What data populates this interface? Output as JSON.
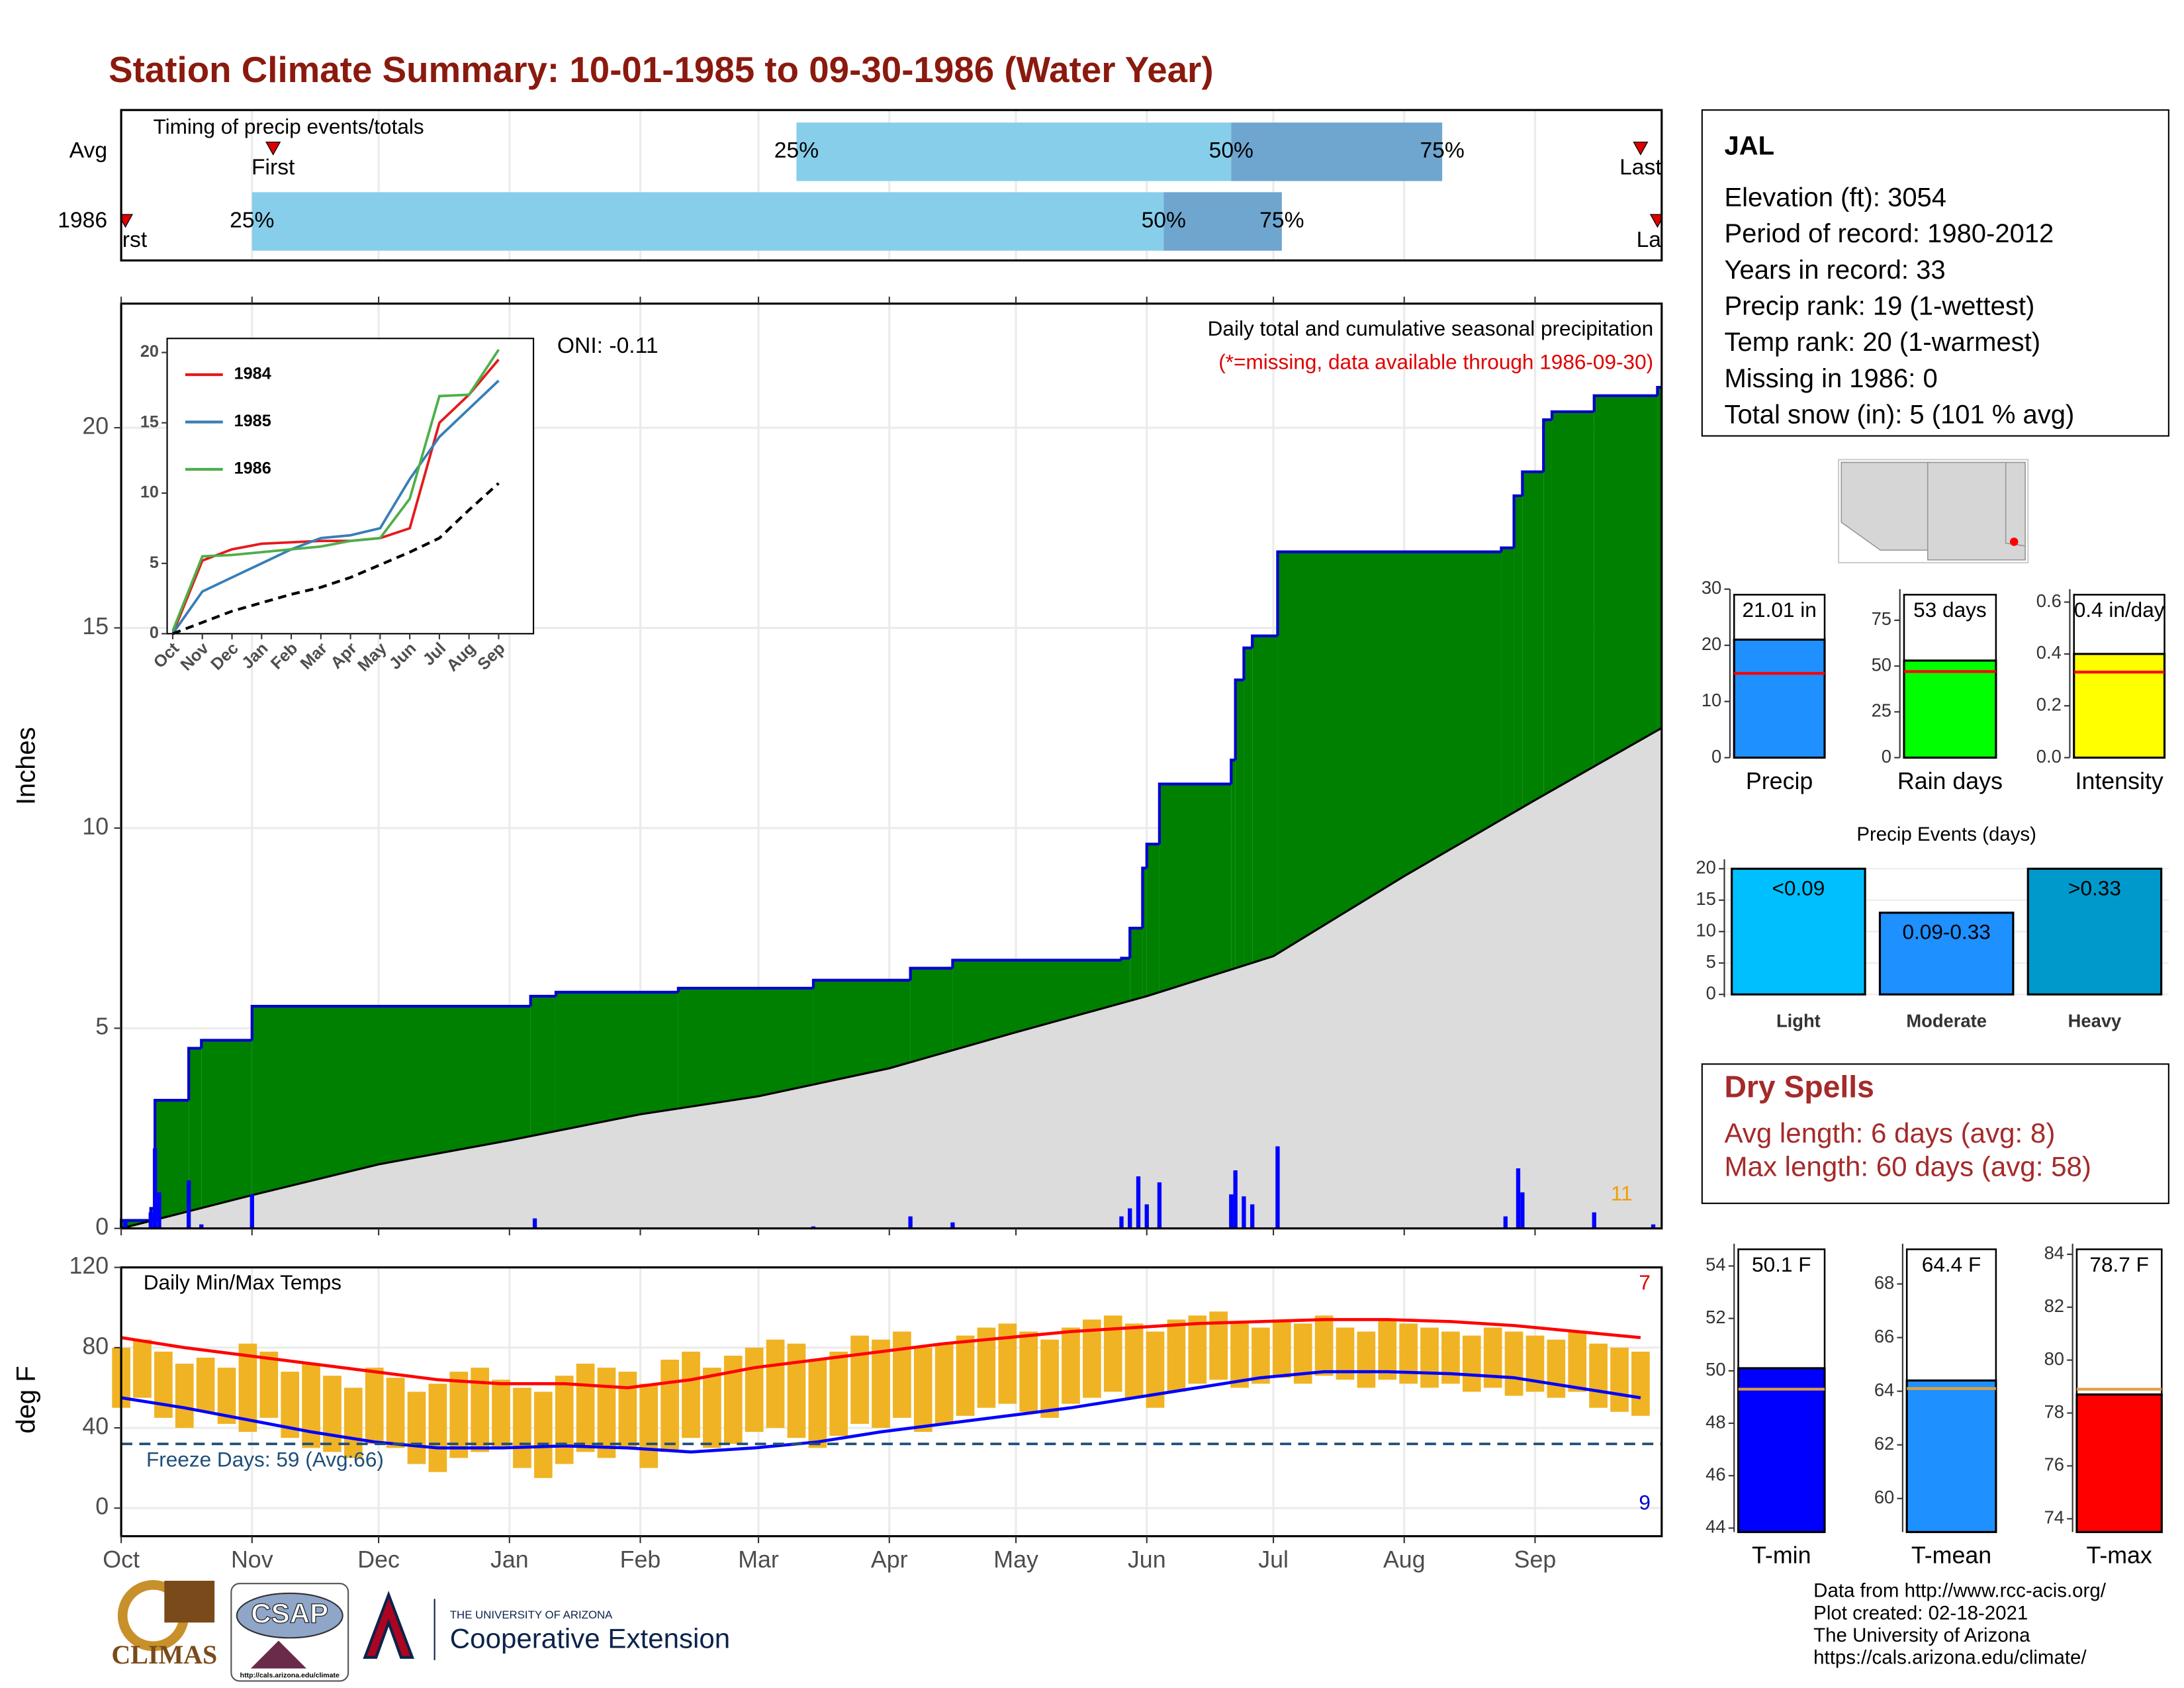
{
  "title": "Station Climate Summary: 10-01-1985 to 09-30-1986 (Water Year)",
  "chart_data": [
    {
      "type": "timing",
      "title": "Timing of precip events/totals",
      "categories": [
        "Avg",
        "1986"
      ],
      "xlim": [
        0,
        365
      ],
      "series": [
        {
          "name": "First",
          "values": [
            36,
            1
          ]
        },
        {
          "name": "25%",
          "values": [
            160,
            31
          ]
        },
        {
          "name": "50%",
          "values": [
            263,
            247
          ]
        },
        {
          "name": "75%",
          "values": [
            313,
            275
          ]
        },
        {
          "name": "Last",
          "values": [
            360,
            364
          ]
        }
      ],
      "bar_colors": [
        "#87ceeb",
        "#6ea6cf"
      ],
      "marker_color": "#dd0000"
    },
    {
      "type": "precip",
      "ylabel": "Inches",
      "xlim": [
        0,
        365
      ],
      "ylim": [
        0,
        23.1
      ],
      "yticks": [
        0,
        5,
        10,
        15,
        20
      ],
      "grid": true,
      "annotations": [
        "Daily total and cumulative seasonal precipitation",
        "(*=missing, data available through 1986-09-30)",
        "ONI: -0.11",
        "11"
      ],
      "cumulative": {
        "x": [
          0,
          7,
          8,
          16,
          19,
          31,
          97,
          103,
          132,
          164,
          187,
          197,
          237,
          239,
          242,
          243,
          246,
          263,
          264,
          266,
          268,
          274,
          327,
          330,
          332,
          337,
          339,
          349,
          364
        ],
        "values": [
          0.2,
          0.5,
          3.2,
          4.5,
          4.7,
          5.55,
          5.8,
          5.9,
          6.0,
          6.2,
          6.5,
          6.7,
          6.75,
          7.5,
          9.0,
          9.6,
          11.1,
          11.7,
          13.7,
          14.5,
          14.8,
          16.9,
          17.0,
          18.3,
          18.9,
          20.2,
          20.4,
          20.8,
          21.01
        ],
        "color": "#008000",
        "edge_color": "#0000cd"
      },
      "average": {
        "x": [
          0,
          31,
          61,
          92,
          123,
          151,
          182,
          212,
          243,
          273,
          304,
          335,
          365
        ],
        "values": [
          0,
          0.83,
          1.6,
          2.2,
          2.85,
          3.3,
          4.0,
          4.9,
          5.8,
          6.8,
          8.8,
          10.7,
          12.5
        ],
        "color": "#dcdcdc"
      },
      "daily": {
        "x": [
          1,
          7,
          8,
          9,
          16,
          19,
          31,
          98,
          164,
          187,
          197,
          237,
          239,
          241,
          243,
          246,
          263,
          264,
          266,
          268,
          274,
          328,
          331,
          332,
          349,
          363
        ],
        "values": [
          0.2,
          0.4,
          2.0,
          0.9,
          1.2,
          0.1,
          0.85,
          0.25,
          0.05,
          0.3,
          0.15,
          0.3,
          0.5,
          1.3,
          0.6,
          1.15,
          0.85,
          1.45,
          0.8,
          0.6,
          2.05,
          0.3,
          1.5,
          0.9,
          0.4,
          0.1
        ],
        "color": "#0000ff"
      }
    },
    {
      "type": "temperature",
      "ylabel": "deg F",
      "xlim": [
        0,
        365
      ],
      "ylim": [
        -14,
        120
      ],
      "yticks": [
        0,
        40,
        80,
        120
      ],
      "grid": true,
      "xticks": [
        {
          "value": 0,
          "label": "Oct"
        },
        {
          "value": 31,
          "label": "Nov"
        },
        {
          "value": 61,
          "label": "Dec"
        },
        {
          "value": 92,
          "label": "Jan"
        },
        {
          "value": 123,
          "label": "Feb"
        },
        {
          "value": 151,
          "label": "Mar"
        },
        {
          "value": 182,
          "label": "Apr"
        },
        {
          "value": 212,
          "label": "May"
        },
        {
          "value": 243,
          "label": "Jun"
        },
        {
          "value": 273,
          "label": "Jul"
        },
        {
          "value": 304,
          "label": "Aug"
        },
        {
          "value": 335,
          "label": "Sep"
        }
      ],
      "annotations": [
        "Daily Min/Max Temps",
        "Freeze Days: 59 (Avg:66)",
        "7",
        "9"
      ],
      "freeze_line": 32,
      "freeze_color": "#1f4e79",
      "daily": {
        "x": [
          0,
          5,
          10,
          15,
          20,
          25,
          30,
          35,
          40,
          45,
          50,
          55,
          60,
          65,
          70,
          75,
          80,
          85,
          90,
          95,
          100,
          105,
          110,
          115,
          120,
          125,
          130,
          135,
          140,
          145,
          150,
          155,
          160,
          165,
          170,
          175,
          180,
          185,
          190,
          195,
          200,
          205,
          210,
          215,
          220,
          225,
          230,
          235,
          240,
          245,
          250,
          255,
          260,
          265,
          270,
          275,
          280,
          285,
          290,
          295,
          300,
          305,
          310,
          315,
          320,
          325,
          330,
          335,
          340,
          345,
          350,
          355,
          360
        ],
        "max": [
          80,
          84,
          78,
          72,
          75,
          70,
          82,
          78,
          68,
          72,
          66,
          60,
          70,
          65,
          58,
          62,
          68,
          70,
          64,
          60,
          58,
          66,
          72,
          70,
          68,
          62,
          74,
          78,
          70,
          76,
          80,
          84,
          82,
          74,
          78,
          86,
          84,
          88,
          80,
          82,
          86,
          90,
          92,
          88,
          84,
          90,
          94,
          96,
          92,
          88,
          94,
          96,
          98,
          92,
          90,
          94,
          92,
          96,
          90,
          88,
          94,
          92,
          90,
          88,
          86,
          90,
          88,
          86,
          84,
          88,
          82,
          80,
          78
        ],
        "min": [
          50,
          55,
          45,
          40,
          48,
          42,
          38,
          45,
          35,
          30,
          28,
          25,
          32,
          30,
          22,
          18,
          25,
          28,
          30,
          20,
          15,
          22,
          28,
          25,
          30,
          20,
          28,
          35,
          30,
          32,
          38,
          40,
          35,
          30,
          36,
          42,
          40,
          45,
          38,
          42,
          46,
          50,
          52,
          48,
          45,
          52,
          55,
          58,
          55,
          50,
          58,
          62,
          64,
          60,
          62,
          65,
          62,
          66,
          64,
          60,
          64,
          62,
          60,
          62,
          58,
          60,
          56,
          58,
          55,
          58,
          50,
          48,
          46
        ],
        "color": "#f0b323"
      },
      "avg_max": {
        "x": [
          0,
          15,
          30,
          45,
          60,
          75,
          90,
          105,
          120,
          135,
          150,
          165,
          180,
          195,
          210,
          225,
          240,
          255,
          270,
          285,
          300,
          315,
          330,
          345,
          360
        ],
        "values": [
          85,
          80,
          76,
          72,
          68,
          64,
          62,
          62,
          60,
          64,
          70,
          74,
          78,
          82,
          85,
          88,
          90,
          92,
          93,
          94,
          94,
          93,
          91,
          88,
          85
        ],
        "color": "#ff0000"
      },
      "avg_min": {
        "x": [
          0,
          15,
          30,
          45,
          60,
          75,
          90,
          105,
          120,
          135,
          150,
          165,
          180,
          195,
          210,
          225,
          240,
          255,
          270,
          285,
          300,
          315,
          330,
          345,
          360
        ],
        "values": [
          55,
          50,
          44,
          38,
          33,
          30,
          30,
          31,
          30,
          28,
          30,
          33,
          38,
          42,
          46,
          50,
          55,
          60,
          65,
          68,
          68,
          67,
          65,
          60,
          55
        ],
        "color": "#0000ff"
      }
    },
    {
      "type": "line",
      "categories": [
        "Oct",
        "Nov",
        "Dec",
        "Jan",
        "Feb",
        "Mar",
        "Apr",
        "May",
        "Jun",
        "Jul",
        "Aug",
        "Sep"
      ],
      "ylim": [
        0,
        21
      ],
      "yticks": [
        0,
        5,
        10,
        15,
        20
      ],
      "series": [
        {
          "name": "1984",
          "color": "#e41a1c",
          "values": [
            0,
            5.2,
            6.0,
            6.4,
            6.5,
            6.6,
            6.6,
            6.8,
            7.5,
            15,
            17,
            19.5
          ]
        },
        {
          "name": "1985",
          "color": "#377eb8",
          "values": [
            0,
            3,
            4,
            5,
            6,
            6.8,
            7,
            7.5,
            11,
            14,
            16,
            18
          ]
        },
        {
          "name": "1986",
          "color": "#4daf4a",
          "values": [
            0.2,
            5.5,
            5.6,
            5.8,
            6.0,
            6.2,
            6.6,
            6.8,
            9.6,
            16.9,
            17.0,
            20.2
          ]
        },
        {
          "color": "#000000",
          "dash": true,
          "values": [
            0,
            0.8,
            1.6,
            2.2,
            2.8,
            3.3,
            4.0,
            4.9,
            5.8,
            6.8,
            8.8,
            10.7
          ]
        }
      ]
    },
    {
      "type": "bar",
      "categories": [
        "Precip"
      ],
      "values": [
        21.01
      ],
      "value_labels": [
        "21.01 in"
      ],
      "color": "#1e90ff",
      "avg": 15,
      "avg_color": "#ff0000",
      "ylim": [
        0,
        30
      ],
      "yticks": [
        0,
        10,
        20,
        30
      ]
    },
    {
      "type": "bar",
      "categories": [
        "Rain days"
      ],
      "values": [
        53
      ],
      "value_labels": [
        "53 days"
      ],
      "color": "#00ff00",
      "avg": 47,
      "avg_color": "#ff0000",
      "ylim": [
        0,
        92
      ],
      "yticks": [
        0,
        25,
        50,
        75
      ]
    },
    {
      "type": "bar",
      "categories": [
        "Intensity"
      ],
      "values": [
        0.4
      ],
      "value_labels": [
        "0.4 in/day"
      ],
      "color": "#ffff00",
      "avg": 0.33,
      "avg_color": "#ff0000",
      "ylim": [
        0,
        0.65
      ],
      "yticks": [
        {
          "value": 0,
          "label": "0.0"
        },
        0.2,
        0.4,
        0.6
      ]
    },
    {
      "type": "events",
      "title": "Precip Events (days)",
      "categories": [
        "Light",
        "Moderate",
        "Heavy"
      ],
      "values": [
        20,
        13,
        20
      ],
      "bar_labels": [
        "<0.09",
        "0.09-0.33",
        ">0.33"
      ],
      "colors": [
        "#00bfff",
        "#1e90ff",
        "#0099cc"
      ],
      "ylim": [
        0,
        21.5
      ],
      "yticks": [
        0,
        5,
        10,
        15,
        20
      ],
      "grid": true
    },
    {
      "type": "bar",
      "categories": [
        "T-min"
      ],
      "values": [
        50.1
      ],
      "value_labels": [
        "50.1 F"
      ],
      "color": "#0000ff",
      "avg": 49.3,
      "avg_color": "#e0a040",
      "ylim": [
        43.85,
        54.85
      ],
      "yticks": [
        44,
        46,
        48,
        50,
        52,
        54
      ]
    },
    {
      "type": "bar",
      "categories": [
        "T-mean"
      ],
      "values": [
        64.4
      ],
      "value_labels": [
        "64.4 F"
      ],
      "color": "#1e90ff",
      "avg": 64.1,
      "avg_color": "#e0a040",
      "ylim": [
        58.75,
        69.5
      ],
      "yticks": [
        60,
        62,
        64,
        66,
        68
      ]
    },
    {
      "type": "bar",
      "categories": [
        "T-max"
      ],
      "values": [
        78.7
      ],
      "value_labels": [
        "78.7 F"
      ],
      "color": "#ff0000",
      "avg": 78.9,
      "avg_color": "#e0a040",
      "ylim": [
        73.5,
        84.4
      ],
      "yticks": [
        74,
        76,
        78,
        80,
        82,
        84
      ]
    }
  ],
  "station": {
    "name": "JAL",
    "lines": [
      "Elevation (ft): 3054",
      "Period of record: 1980-2012",
      "Years in record: 33",
      "Precip rank: 19 (1-wettest)",
      "Temp rank: 20 (1-warmest)",
      "Missing in 1986: 0",
      "Total snow (in): 5 (101 % avg)"
    ]
  },
  "dry_spells": {
    "title": "Dry Spells",
    "lines": [
      "Avg length: 6 days (avg: 8)",
      "Max length: 60 days (avg: 58)"
    ]
  },
  "footer": [
    "Data from http://www.rcc-acis.org/",
    "Plot created: 02-18-2021",
    "The University of Arizona",
    "https://cals.arizona.edu/climate/"
  ],
  "logos": {
    "climas": "CLIMAS",
    "csap": "CSAP",
    "csap_url": "http://cals.arizona.edu/climate",
    "university": "THE UNIVERSITY OF ARIZONA",
    "extension": "Cooperative Extension"
  }
}
